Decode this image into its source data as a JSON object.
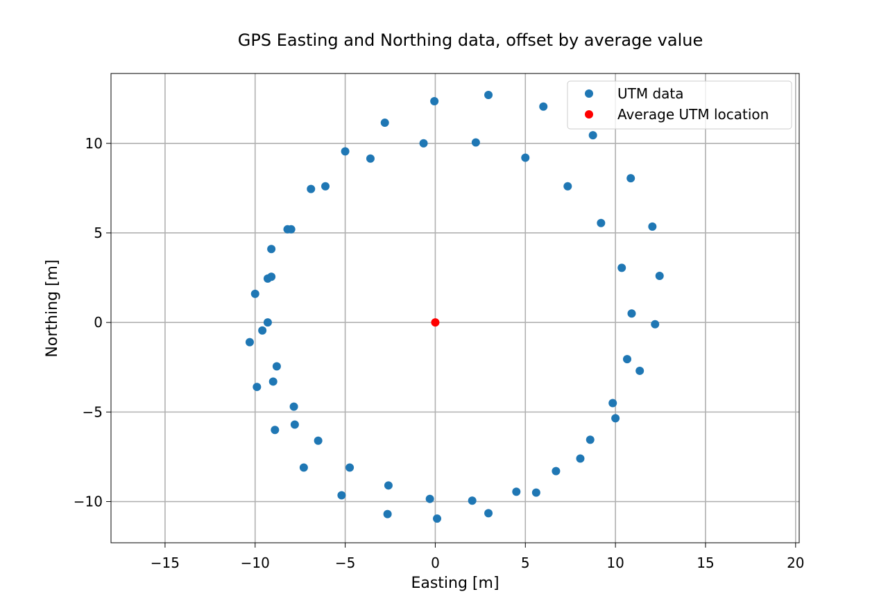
{
  "chart_data": {
    "type": "scatter",
    "title": "GPS Easting and Northing data, offset by average value",
    "xlabel": "Easting [m]",
    "ylabel": "Northing [m]",
    "xlim": [
      -18,
      20.2
    ],
    "ylim": [
      -12.3,
      13.9
    ],
    "xticks": [
      -15,
      -10,
      -5,
      0,
      5,
      10,
      15,
      20
    ],
    "xtick_labels": [
      "−15",
      "−10",
      "−5",
      "0",
      "5",
      "10",
      "15",
      "20"
    ],
    "yticks": [
      -10,
      -5,
      0,
      5,
      10
    ],
    "ytick_labels": [
      "−10",
      "−5",
      "0",
      "5",
      "10"
    ],
    "grid": true,
    "legend_position": "top-right",
    "series": [
      {
        "name": "UTM data",
        "color": "#1f77b4",
        "points": [
          [
            -0.05,
            12.35
          ],
          [
            2.95,
            12.7
          ],
          [
            6.0,
            12.05
          ],
          [
            8.75,
            10.45
          ],
          [
            -2.8,
            11.15
          ],
          [
            -5.0,
            9.55
          ],
          [
            -3.6,
            9.15
          ],
          [
            -0.65,
            10.0
          ],
          [
            2.25,
            10.05
          ],
          [
            5.0,
            9.2
          ],
          [
            10.85,
            8.05
          ],
          [
            7.35,
            7.6
          ],
          [
            -6.9,
            7.45
          ],
          [
            -6.1,
            7.6
          ],
          [
            9.2,
            5.55
          ],
          [
            12.05,
            5.35
          ],
          [
            -8.2,
            5.2
          ],
          [
            -8.0,
            5.2
          ],
          [
            -9.1,
            4.1
          ],
          [
            10.35,
            3.05
          ],
          [
            12.45,
            2.6
          ],
          [
            -9.3,
            2.45
          ],
          [
            -9.1,
            2.55
          ],
          [
            -10.0,
            1.6
          ],
          [
            10.9,
            0.5
          ],
          [
            12.2,
            -0.1
          ],
          [
            -9.3,
            0.0
          ],
          [
            -9.6,
            -0.45
          ],
          [
            -10.3,
            -1.1
          ],
          [
            10.65,
            -2.05
          ],
          [
            11.35,
            -2.7
          ],
          [
            -8.8,
            -2.45
          ],
          [
            -9.0,
            -3.3
          ],
          [
            -9.9,
            -3.6
          ],
          [
            9.85,
            -4.5
          ],
          [
            10.0,
            -5.35
          ],
          [
            -7.85,
            -4.7
          ],
          [
            -7.8,
            -5.7
          ],
          [
            -8.9,
            -6.0
          ],
          [
            -6.5,
            -6.6
          ],
          [
            8.6,
            -6.55
          ],
          [
            8.05,
            -7.6
          ],
          [
            6.7,
            -8.3
          ],
          [
            -7.3,
            -8.1
          ],
          [
            -4.75,
            -8.1
          ],
          [
            -2.6,
            -9.1
          ],
          [
            4.5,
            -9.45
          ],
          [
            5.6,
            -9.5
          ],
          [
            -5.2,
            -9.65
          ],
          [
            -0.3,
            -9.85
          ],
          [
            2.05,
            -9.95
          ],
          [
            -2.65,
            -10.7
          ],
          [
            2.95,
            -10.65
          ],
          [
            0.1,
            -10.95
          ]
        ]
      },
      {
        "name": "Average UTM location",
        "color": "#ff0000",
        "points": [
          [
            0.0,
            0.0
          ]
        ]
      }
    ]
  }
}
